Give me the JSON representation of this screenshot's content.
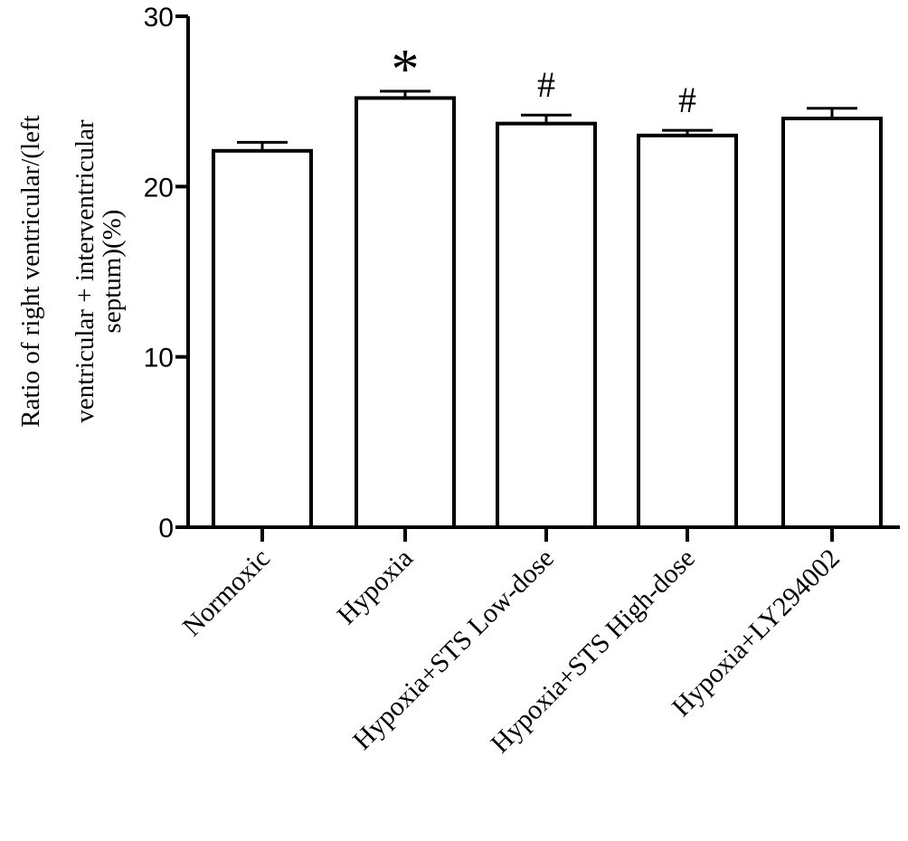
{
  "chart_data": {
    "type": "bar",
    "categories": [
      "Normoxic",
      "Hypoxia",
      "Hypoxia+STS Low-dose",
      "Hypoxia+STS High-dose",
      "Hypoxia+LY294002"
    ],
    "values": [
      22.1,
      25.2,
      23.7,
      23.0,
      24.0
    ],
    "errors": [
      0.5,
      0.4,
      0.5,
      0.3,
      0.6
    ],
    "annotations": [
      "",
      "*",
      "#",
      "#",
      ""
    ],
    "ylabel_lines": [
      "Ratio of right ventricular/(left",
      "ventricular +  interventricular",
      "septum)(%)"
    ],
    "ylim": [
      0,
      30
    ],
    "yticks": [
      "0",
      "10",
      "20",
      "30"
    ],
    "bar_fill": "#ffffff",
    "bar_stroke": "#000000",
    "grid": false,
    "legend": "none"
  }
}
